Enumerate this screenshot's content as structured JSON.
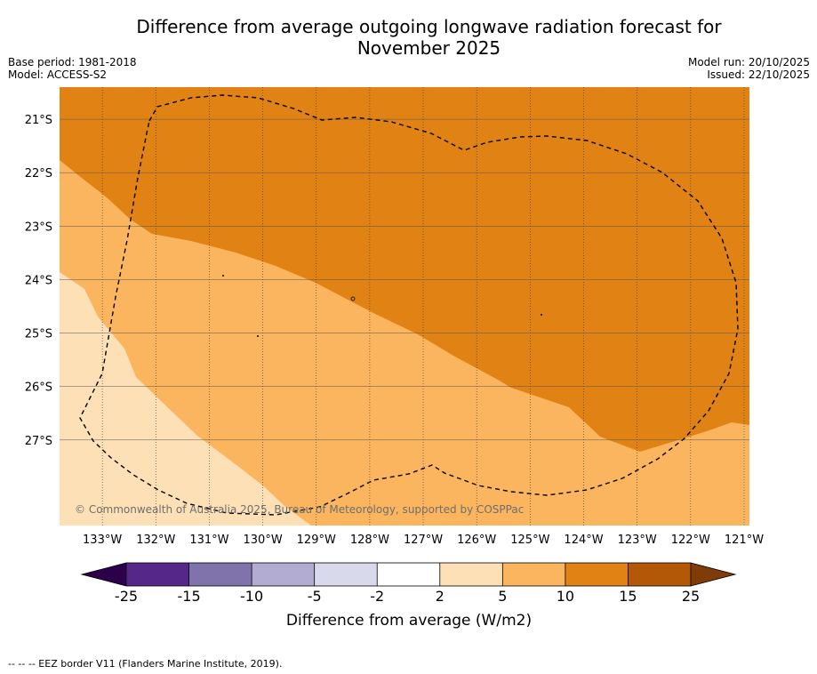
{
  "title_line1": "Difference from average outgoing longwave radiation forecast for",
  "title_line2": "November 2025",
  "base_period": "Base period: 1981-2018",
  "model": "Model: ACCESS-S2",
  "model_run": "Model run: 20/10/2025",
  "issued": "Issued: 22/10/2025",
  "copyright": "© Commonwealth of Australia 2025, Bureau of Meteorology, supported by COSPPac",
  "map": {
    "lon_range": [
      -133.8,
      -120.9
    ],
    "lat_range": [
      -20.4,
      -28.6
    ],
    "lon_ticks": [
      -133,
      -132,
      -131,
      -130,
      -129,
      -128,
      -127,
      -126,
      -125,
      -124,
      -123,
      -122,
      -121
    ],
    "lon_labels": [
      "133°W",
      "132°W",
      "131°W",
      "130°W",
      "129°W",
      "128°W",
      "127°W",
      "126°W",
      "125°W",
      "124°W",
      "123°W",
      "122°W",
      "121°W"
    ],
    "lat_ticks": [
      -21,
      -22,
      -23,
      -24,
      -25,
      -26,
      -27
    ],
    "lat_labels": [
      "21°S",
      "22°S",
      "23°S",
      "24°S",
      "25°S",
      "26°S",
      "27°S"
    ],
    "fill_colors": {
      "c2_5": "#fde0b6",
      "c5_10": "#fbb55e",
      "c10_15": "#e08214"
    }
  },
  "colorbar": {
    "tick_labels": [
      "-25",
      "-15",
      "-10",
      "-5",
      "-2",
      "2",
      "5",
      "10",
      "15",
      "25"
    ],
    "colors": [
      "#542788",
      "#8073ac",
      "#b2abd2",
      "#d8daeb",
      "#ffffff",
      "#fde0b6",
      "#fbb55e",
      "#e08214",
      "#b35806"
    ],
    "under_color": "#2d004b",
    "over_color": "#7f3b08",
    "label": "Difference from average (W/m2)"
  },
  "legend_note": "--  --  -- EEZ border V11 (Flanders Marine Institute, 2019)."
}
